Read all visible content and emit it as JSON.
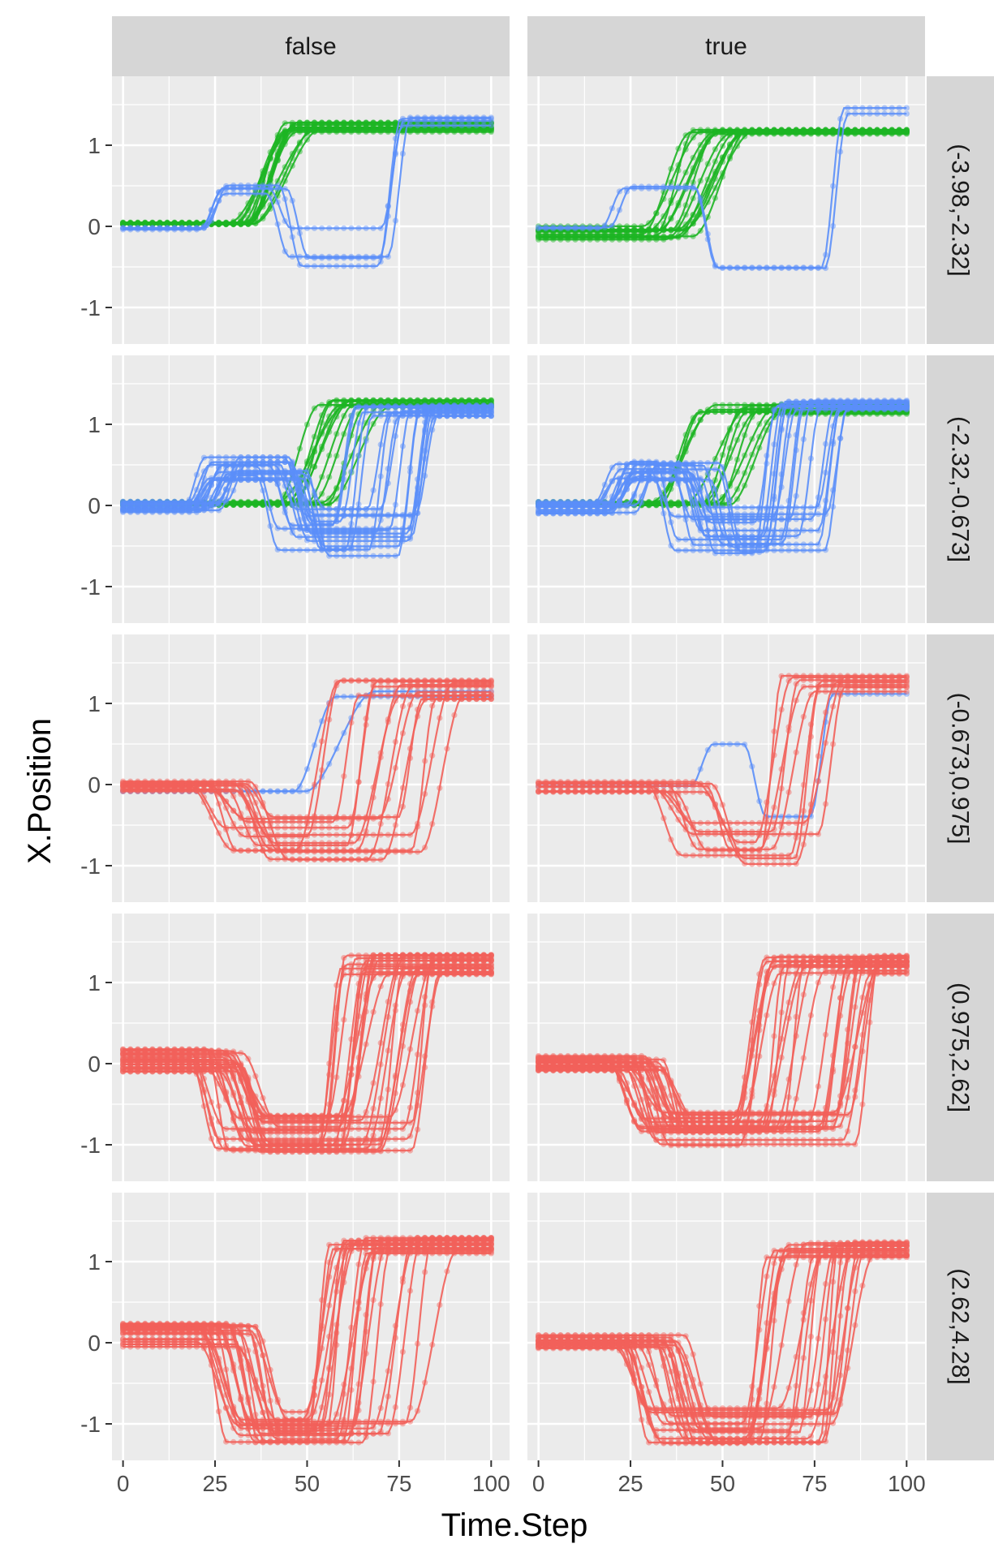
{
  "chart_data": {
    "type": "line",
    "xlabel": "Time.Step",
    "ylabel": "X.Position",
    "xlim": [
      -3,
      105
    ],
    "ylim": [
      -1.45,
      1.85
    ],
    "xticks": [
      0,
      25,
      50,
      75,
      100
    ],
    "xtick_labels": [
      "0",
      "25",
      "50",
      "75",
      "100"
    ],
    "yticks": [
      -1,
      0,
      1
    ],
    "ytick_labels": [
      "-1",
      "0",
      "1"
    ],
    "grid": true,
    "legend": "none",
    "colors": {
      "red": "#F2615A",
      "green": "#1DB523",
      "blue": "#5B8FF9",
      "panel": "#EBEBEB",
      "strip": "#D6D6D6"
    },
    "col_facets": [
      "false",
      "true"
    ],
    "row_facets": [
      "(-3.98,-2.32]",
      "(-2.32,-0.673]",
      "(-0.673,0.975]",
      "(0.975,2.62]",
      "(2.62,4.28]"
    ],
    "panels": [
      {
        "row": 0,
        "col": 0,
        "series": [
          {
            "color": "green",
            "count": 14,
            "pattern": "rise",
            "start": [
              0.02,
              0.05
            ],
            "t1": [
              27,
              36
            ],
            "end": [
              1.15,
              1.3
            ]
          },
          {
            "color": "blue",
            "count": 4,
            "pattern": "hump",
            "start": [
              -0.04,
              0.0
            ],
            "t1": [
              20,
              24
            ],
            "mid": [
              0.4,
              0.55
            ],
            "t2": [
              38,
              46
            ],
            "low": [
              -0.5,
              0.0
            ],
            "t3": [
              64,
              76
            ],
            "end": [
              1.2,
              1.35
            ]
          }
        ]
      },
      {
        "row": 0,
        "col": 1,
        "series": [
          {
            "color": "green",
            "count": 14,
            "pattern": "rise",
            "start": [
              -0.18,
              0.02
            ],
            "t1": [
              28,
              42
            ],
            "end": [
              1.13,
              1.2
            ]
          },
          {
            "color": "blue",
            "count": 2,
            "pattern": "hump",
            "start": [
              -0.04,
              0.0
            ],
            "t1": [
              16,
              20
            ],
            "mid": [
              0.45,
              0.5
            ],
            "t2": [
              40,
              45
            ],
            "low": [
              -0.52,
              -0.48
            ],
            "t3": [
              76,
              78
            ],
            "end": [
              1.2,
              1.7
            ]
          }
        ]
      },
      {
        "row": 1,
        "col": 0,
        "series": [
          {
            "color": "green",
            "count": 12,
            "pattern": "rise",
            "start": [
              0.0,
              0.05
            ],
            "t1": [
              40,
              60
            ],
            "end": [
              1.2,
              1.3
            ]
          },
          {
            "color": "blue",
            "count": 18,
            "pattern": "hump",
            "start": [
              -0.1,
              0.05
            ],
            "t1": [
              15,
              28
            ],
            "mid": [
              0.3,
              0.6
            ],
            "t2": [
              35,
              50
            ],
            "low": [
              -0.65,
              0.0
            ],
            "t3": [
              54,
              80
            ],
            "end": [
              1.1,
              1.25
            ]
          }
        ]
      },
      {
        "row": 1,
        "col": 1,
        "series": [
          {
            "color": "green",
            "count": 12,
            "pattern": "rise",
            "start": [
              0.0,
              0.05
            ],
            "t1": [
              30,
              52
            ],
            "end": [
              1.12,
              1.25
            ]
          },
          {
            "color": "blue",
            "count": 18,
            "pattern": "hump",
            "start": [
              -0.1,
              0.05
            ],
            "t1": [
              15,
              27
            ],
            "mid": [
              0.3,
              0.55
            ],
            "t2": [
              30,
              50
            ],
            "low": [
              -0.6,
              0.0
            ],
            "t3": [
              58,
              80
            ],
            "end": [
              1.15,
              1.3
            ]
          }
        ]
      },
      {
        "row": 2,
        "col": 0,
        "series": [
          {
            "color": "blue",
            "count": 2,
            "pattern": "rise",
            "start": [
              -0.1,
              -0.05
            ],
            "t1": [
              46,
              52
            ],
            "end": [
              1.05,
              1.15
            ]
          },
          {
            "color": "red",
            "count": 14,
            "pattern": "dip",
            "start": [
              -0.1,
              0.05
            ],
            "t1": [
              18,
              35
            ],
            "low": [
              -1.0,
              -0.4
            ],
            "t2": [
              42,
              85
            ],
            "end": [
              1.05,
              1.3
            ]
          }
        ]
      },
      {
        "row": 2,
        "col": 1,
        "series": [
          {
            "color": "blue",
            "count": 1,
            "pattern": "hump",
            "start": [
              -0.02,
              0.0
            ],
            "t1": [
              40,
              42
            ],
            "mid": [
              0.45,
              0.5
            ],
            "t2": [
              55,
              57
            ],
            "low": [
              -0.42,
              -0.38
            ],
            "t3": [
              73,
              75
            ],
            "end": [
              1.1,
              1.15
            ]
          },
          {
            "color": "red",
            "count": 10,
            "pattern": "dip",
            "start": [
              -0.1,
              0.05
            ],
            "t1": [
              28,
              48
            ],
            "low": [
              -1.05,
              -0.4
            ],
            "t2": [
              55,
              78
            ],
            "end": [
              1.05,
              1.35
            ]
          }
        ]
      },
      {
        "row": 3,
        "col": 0,
        "series": [
          {
            "color": "red",
            "count": 26,
            "pattern": "dip",
            "start": [
              -0.1,
              0.2
            ],
            "t1": [
              18,
              35
            ],
            "low": [
              -1.1,
              -0.6
            ],
            "t2": [
              52,
              82
            ],
            "end": [
              1.1,
              1.35
            ]
          }
        ]
      },
      {
        "row": 3,
        "col": 1,
        "series": [
          {
            "color": "red",
            "count": 26,
            "pattern": "dip",
            "start": [
              -0.1,
              0.1
            ],
            "t1": [
              18,
              35
            ],
            "low": [
              -1.1,
              -0.6
            ],
            "t2": [
              52,
              88
            ],
            "end": [
              1.1,
              1.35
            ]
          }
        ]
      },
      {
        "row": 4,
        "col": 0,
        "series": [
          {
            "color": "red",
            "count": 22,
            "pattern": "dip",
            "start": [
              -0.1,
              0.25
            ],
            "t1": [
              20,
              40
            ],
            "low": [
              -1.25,
              -0.8
            ],
            "t2": [
              48,
              80
            ],
            "end": [
              1.1,
              1.3
            ]
          }
        ]
      },
      {
        "row": 4,
        "col": 1,
        "series": [
          {
            "color": "red",
            "count": 22,
            "pattern": "dip",
            "start": [
              -0.1,
              0.1
            ],
            "t1": [
              20,
              40
            ],
            "low": [
              -1.25,
              -0.8
            ],
            "t2": [
              55,
              82
            ],
            "end": [
              1.05,
              1.25
            ]
          }
        ]
      }
    ]
  }
}
